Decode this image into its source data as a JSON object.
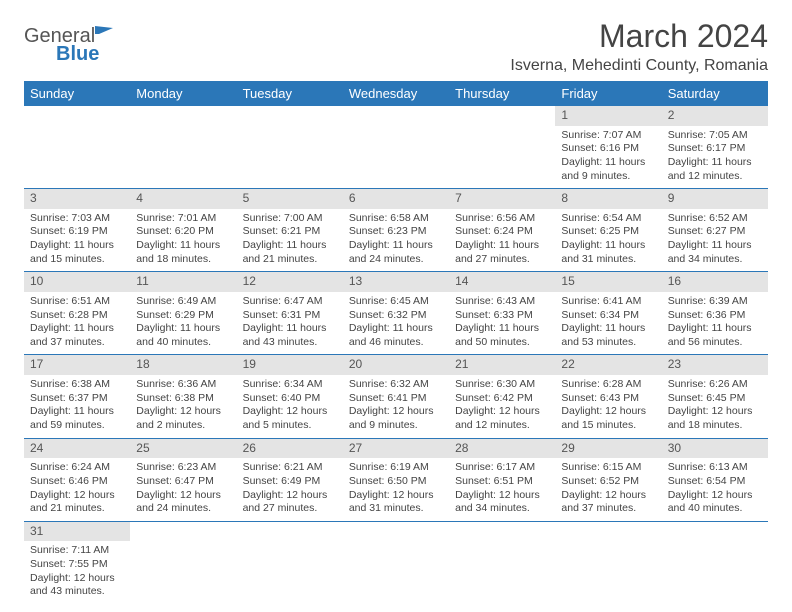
{
  "header": {
    "logo_general": "General",
    "logo_blue": "Blue",
    "month_title": "March 2024",
    "location": "Isverna, Mehedinti County, Romania"
  },
  "colors": {
    "header_bg": "#2b77b8",
    "header_text": "#ffffff",
    "daynum_bg": "#e4e4e4",
    "border": "#2b77b8"
  },
  "weekdays": [
    "Sunday",
    "Monday",
    "Tuesday",
    "Wednesday",
    "Thursday",
    "Friday",
    "Saturday"
  ],
  "weeks": [
    [
      {
        "n": "",
        "sr": "",
        "ss": "",
        "dl": ""
      },
      {
        "n": "",
        "sr": "",
        "ss": "",
        "dl": ""
      },
      {
        "n": "",
        "sr": "",
        "ss": "",
        "dl": ""
      },
      {
        "n": "",
        "sr": "",
        "ss": "",
        "dl": ""
      },
      {
        "n": "",
        "sr": "",
        "ss": "",
        "dl": ""
      },
      {
        "n": "1",
        "sr": "Sunrise: 7:07 AM",
        "ss": "Sunset: 6:16 PM",
        "dl": "Daylight: 11 hours and 9 minutes."
      },
      {
        "n": "2",
        "sr": "Sunrise: 7:05 AM",
        "ss": "Sunset: 6:17 PM",
        "dl": "Daylight: 11 hours and 12 minutes."
      }
    ],
    [
      {
        "n": "3",
        "sr": "Sunrise: 7:03 AM",
        "ss": "Sunset: 6:19 PM",
        "dl": "Daylight: 11 hours and 15 minutes."
      },
      {
        "n": "4",
        "sr": "Sunrise: 7:01 AM",
        "ss": "Sunset: 6:20 PM",
        "dl": "Daylight: 11 hours and 18 minutes."
      },
      {
        "n": "5",
        "sr": "Sunrise: 7:00 AM",
        "ss": "Sunset: 6:21 PM",
        "dl": "Daylight: 11 hours and 21 minutes."
      },
      {
        "n": "6",
        "sr": "Sunrise: 6:58 AM",
        "ss": "Sunset: 6:23 PM",
        "dl": "Daylight: 11 hours and 24 minutes."
      },
      {
        "n": "7",
        "sr": "Sunrise: 6:56 AM",
        "ss": "Sunset: 6:24 PM",
        "dl": "Daylight: 11 hours and 27 minutes."
      },
      {
        "n": "8",
        "sr": "Sunrise: 6:54 AM",
        "ss": "Sunset: 6:25 PM",
        "dl": "Daylight: 11 hours and 31 minutes."
      },
      {
        "n": "9",
        "sr": "Sunrise: 6:52 AM",
        "ss": "Sunset: 6:27 PM",
        "dl": "Daylight: 11 hours and 34 minutes."
      }
    ],
    [
      {
        "n": "10",
        "sr": "Sunrise: 6:51 AM",
        "ss": "Sunset: 6:28 PM",
        "dl": "Daylight: 11 hours and 37 minutes."
      },
      {
        "n": "11",
        "sr": "Sunrise: 6:49 AM",
        "ss": "Sunset: 6:29 PM",
        "dl": "Daylight: 11 hours and 40 minutes."
      },
      {
        "n": "12",
        "sr": "Sunrise: 6:47 AM",
        "ss": "Sunset: 6:31 PM",
        "dl": "Daylight: 11 hours and 43 minutes."
      },
      {
        "n": "13",
        "sr": "Sunrise: 6:45 AM",
        "ss": "Sunset: 6:32 PM",
        "dl": "Daylight: 11 hours and 46 minutes."
      },
      {
        "n": "14",
        "sr": "Sunrise: 6:43 AM",
        "ss": "Sunset: 6:33 PM",
        "dl": "Daylight: 11 hours and 50 minutes."
      },
      {
        "n": "15",
        "sr": "Sunrise: 6:41 AM",
        "ss": "Sunset: 6:34 PM",
        "dl": "Daylight: 11 hours and 53 minutes."
      },
      {
        "n": "16",
        "sr": "Sunrise: 6:39 AM",
        "ss": "Sunset: 6:36 PM",
        "dl": "Daylight: 11 hours and 56 minutes."
      }
    ],
    [
      {
        "n": "17",
        "sr": "Sunrise: 6:38 AM",
        "ss": "Sunset: 6:37 PM",
        "dl": "Daylight: 11 hours and 59 minutes."
      },
      {
        "n": "18",
        "sr": "Sunrise: 6:36 AM",
        "ss": "Sunset: 6:38 PM",
        "dl": "Daylight: 12 hours and 2 minutes."
      },
      {
        "n": "19",
        "sr": "Sunrise: 6:34 AM",
        "ss": "Sunset: 6:40 PM",
        "dl": "Daylight: 12 hours and 5 minutes."
      },
      {
        "n": "20",
        "sr": "Sunrise: 6:32 AM",
        "ss": "Sunset: 6:41 PM",
        "dl": "Daylight: 12 hours and 9 minutes."
      },
      {
        "n": "21",
        "sr": "Sunrise: 6:30 AM",
        "ss": "Sunset: 6:42 PM",
        "dl": "Daylight: 12 hours and 12 minutes."
      },
      {
        "n": "22",
        "sr": "Sunrise: 6:28 AM",
        "ss": "Sunset: 6:43 PM",
        "dl": "Daylight: 12 hours and 15 minutes."
      },
      {
        "n": "23",
        "sr": "Sunrise: 6:26 AM",
        "ss": "Sunset: 6:45 PM",
        "dl": "Daylight: 12 hours and 18 minutes."
      }
    ],
    [
      {
        "n": "24",
        "sr": "Sunrise: 6:24 AM",
        "ss": "Sunset: 6:46 PM",
        "dl": "Daylight: 12 hours and 21 minutes."
      },
      {
        "n": "25",
        "sr": "Sunrise: 6:23 AM",
        "ss": "Sunset: 6:47 PM",
        "dl": "Daylight: 12 hours and 24 minutes."
      },
      {
        "n": "26",
        "sr": "Sunrise: 6:21 AM",
        "ss": "Sunset: 6:49 PM",
        "dl": "Daylight: 12 hours and 27 minutes."
      },
      {
        "n": "27",
        "sr": "Sunrise: 6:19 AM",
        "ss": "Sunset: 6:50 PM",
        "dl": "Daylight: 12 hours and 31 minutes."
      },
      {
        "n": "28",
        "sr": "Sunrise: 6:17 AM",
        "ss": "Sunset: 6:51 PM",
        "dl": "Daylight: 12 hours and 34 minutes."
      },
      {
        "n": "29",
        "sr": "Sunrise: 6:15 AM",
        "ss": "Sunset: 6:52 PM",
        "dl": "Daylight: 12 hours and 37 minutes."
      },
      {
        "n": "30",
        "sr": "Sunrise: 6:13 AM",
        "ss": "Sunset: 6:54 PM",
        "dl": "Daylight: 12 hours and 40 minutes."
      }
    ],
    [
      {
        "n": "31",
        "sr": "Sunrise: 7:11 AM",
        "ss": "Sunset: 7:55 PM",
        "dl": "Daylight: 12 hours and 43 minutes."
      },
      {
        "n": "",
        "sr": "",
        "ss": "",
        "dl": ""
      },
      {
        "n": "",
        "sr": "",
        "ss": "",
        "dl": ""
      },
      {
        "n": "",
        "sr": "",
        "ss": "",
        "dl": ""
      },
      {
        "n": "",
        "sr": "",
        "ss": "",
        "dl": ""
      },
      {
        "n": "",
        "sr": "",
        "ss": "",
        "dl": ""
      },
      {
        "n": "",
        "sr": "",
        "ss": "",
        "dl": ""
      }
    ]
  ]
}
